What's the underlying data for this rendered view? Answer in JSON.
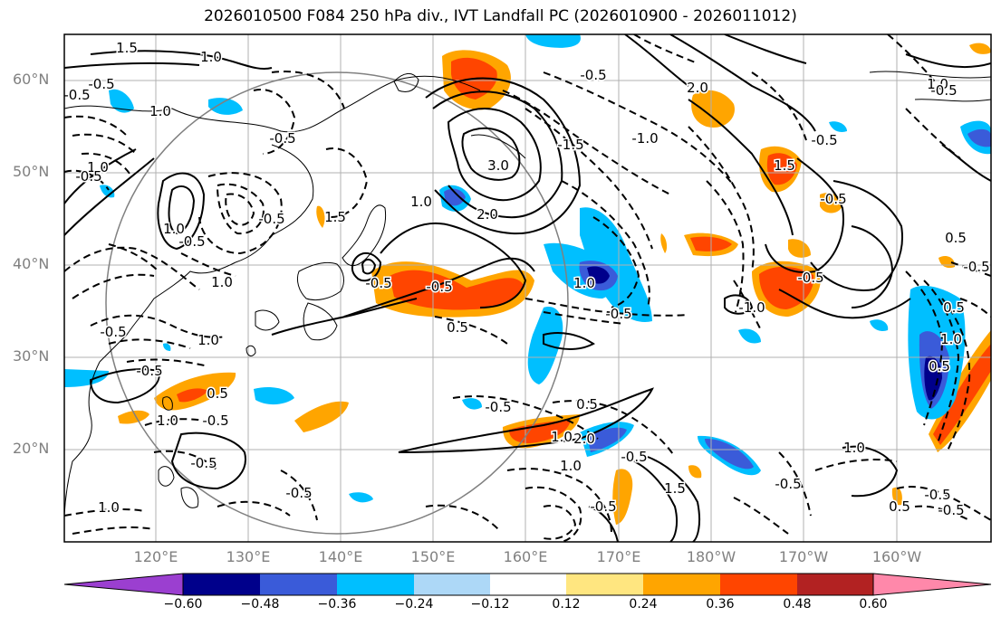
{
  "title": "2026010500 F084 250 hPa div., IVT Landfall PC (2026010900 - 2026011012)",
  "lat_labels": [
    "60°N",
    "50°N",
    "40°N",
    "30°N",
    "20°N"
  ],
  "lon_labels": [
    "120°E",
    "130°E",
    "140°E",
    "150°E",
    "160°E",
    "170°E",
    "180°W",
    "170°W",
    "160°W"
  ],
  "colorbar": {
    "ticks": [
      "−0.60",
      "−0.48",
      "−0.36",
      "−0.24",
      "−0.12",
      "0.12",
      "0.24",
      "0.36",
      "0.48",
      "0.60"
    ],
    "colors": [
      "#9b3fd0",
      "#00008b",
      "#3a5bd9",
      "#00bfff",
      "#add8f7",
      "#ffffff",
      "#ffe680",
      "#ffa500",
      "#ff4500",
      "#b22222",
      "#ff88aa"
    ]
  },
  "contour_labels": [
    {
      "text": "1.5"
    },
    {
      "text": "1.0"
    },
    {
      "text": "-0.5"
    },
    {
      "text": "-0.5"
    },
    {
      "text": "1.0"
    },
    {
      "text": "-0.5"
    },
    {
      "text": "1.0"
    },
    {
      "text": "-0.5"
    },
    {
      "text": "1.0"
    },
    {
      "text": "-0.5"
    },
    {
      "text": "3.0"
    },
    {
      "text": "1.0"
    },
    {
      "text": "2.0"
    },
    {
      "text": "-0.5"
    },
    {
      "text": "-1.5"
    },
    {
      "text": "-1.0"
    },
    {
      "text": "2.0"
    },
    {
      "text": "1.5"
    },
    {
      "text": "-0.5"
    },
    {
      "text": "1.0"
    },
    {
      "text": "-0.5"
    },
    {
      "text": "1.0"
    },
    {
      "text": "-0.5"
    },
    {
      "text": "0.5"
    },
    {
      "text": "1.0"
    },
    {
      "text": "-0.5"
    },
    {
      "text": "-0.5"
    },
    {
      "text": "1.0"
    },
    {
      "text": "-0.5"
    },
    {
      "text": "2.0"
    },
    {
      "text": "1.0"
    },
    {
      "text": "-0.5"
    },
    {
      "text": "0.5"
    },
    {
      "text": "-1.0"
    },
    {
      "text": "-0.5"
    },
    {
      "text": "-0.5"
    },
    {
      "text": "1.5"
    },
    {
      "text": "-0.5"
    },
    {
      "text": "-0.5"
    },
    {
      "text": "-0.5"
    },
    {
      "text": "0.5"
    },
    {
      "text": "1.0"
    },
    {
      "text": "-0.5"
    },
    {
      "text": "-0.5"
    },
    {
      "text": "0.5"
    },
    {
      "text": "1.0"
    },
    {
      "text": "0.5"
    },
    {
      "text": "1.0"
    },
    {
      "text": "-0.5"
    },
    {
      "text": "-0.5"
    },
    {
      "text": "-0.5"
    },
    {
      "text": "1.5"
    },
    {
      "text": "0.5"
    },
    {
      "text": "-0.5"
    },
    {
      "text": "-0.5"
    },
    {
      "text": "1.0"
    },
    {
      "text": "-0.5"
    },
    {
      "text": "1.0"
    },
    {
      "text": "0.5"
    }
  ]
}
